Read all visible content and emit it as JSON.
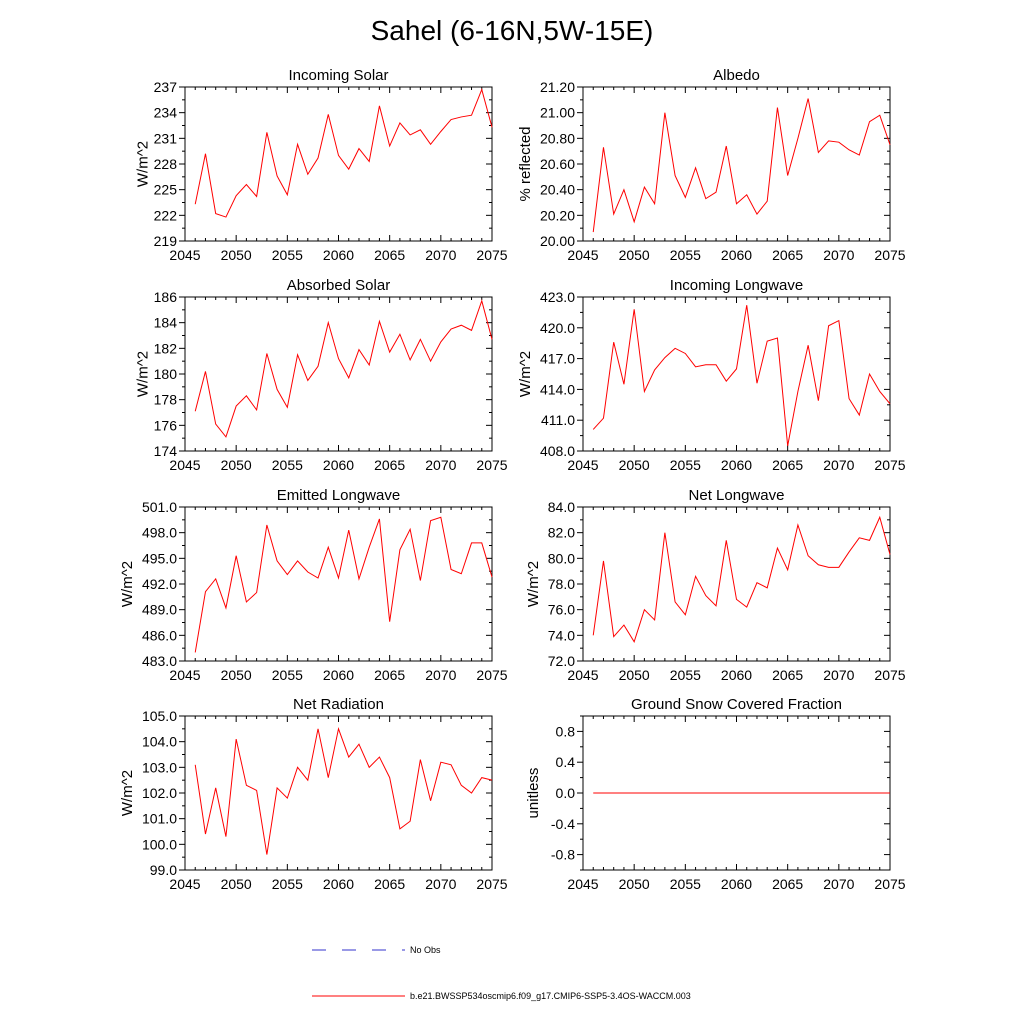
{
  "title": "Sahel (6-16N,5W-15E)",
  "chart_data": [
    {
      "type": "line",
      "title": "Incoming Solar",
      "xlabel": "",
      "ylabel": "W/m^2",
      "xlim": [
        2045,
        2075
      ],
      "ylim": [
        219,
        237
      ],
      "xticks": [
        2045,
        2050,
        2055,
        2060,
        2065,
        2070,
        2075
      ],
      "xtick_labels": [
        "2045",
        "2050",
        "2055",
        "2060",
        "2065",
        "2070",
        "2075"
      ],
      "yticks": [
        219,
        222,
        225,
        228,
        231,
        234,
        237
      ],
      "ytick_labels": [
        "219",
        "222",
        "225",
        "228",
        "231",
        "234",
        "237"
      ],
      "x": [
        2046,
        2047,
        2048,
        2049,
        2050,
        2051,
        2052,
        2053,
        2054,
        2055,
        2056,
        2057,
        2058,
        2059,
        2060,
        2061,
        2062,
        2063,
        2064,
        2065,
        2066,
        2067,
        2068,
        2069,
        2070,
        2071,
        2072,
        2073,
        2074,
        2075
      ],
      "series": [
        {
          "name": "b.e21.BWSSP534oscmip6.f09_g17.CMIP6-SSP5-3.4OS-WACCM.003",
          "color": "#ff0000",
          "values": [
            223.3,
            229.2,
            222.2,
            221.8,
            224.3,
            225.6,
            224.2,
            231.7,
            226.6,
            224.4,
            230.3,
            226.8,
            228.7,
            233.8,
            229.0,
            227.4,
            229.8,
            228.3,
            234.8,
            230.1,
            232.8,
            231.4,
            232.0,
            230.3,
            231.8,
            233.2,
            233.5,
            233.7,
            236.7,
            232.3
          ]
        }
      ]
    },
    {
      "type": "line",
      "title": "Albedo",
      "xlabel": "",
      "ylabel": "% reflected",
      "xlim": [
        2045,
        2075
      ],
      "ylim": [
        20.0,
        21.2
      ],
      "xticks": [
        2045,
        2050,
        2055,
        2060,
        2065,
        2070,
        2075
      ],
      "xtick_labels": [
        "2045",
        "2050",
        "2055",
        "2060",
        "2065",
        "2070",
        "2075"
      ],
      "yticks": [
        20.0,
        20.2,
        20.4,
        20.6,
        20.8,
        21.0,
        21.2
      ],
      "ytick_labels": [
        "20.00",
        "20.20",
        "20.40",
        "20.60",
        "20.80",
        "21.00",
        "21.20"
      ],
      "x": [
        2046,
        2047,
        2048,
        2049,
        2050,
        2051,
        2052,
        2053,
        2054,
        2055,
        2056,
        2057,
        2058,
        2059,
        2060,
        2061,
        2062,
        2063,
        2064,
        2065,
        2066,
        2067,
        2068,
        2069,
        2070,
        2071,
        2072,
        2073,
        2074,
        2075
      ],
      "series": [
        {
          "name": "b.e21.BWSSP534oscmip6.f09_g17.CMIP6-SSP5-3.4OS-WACCM.003",
          "color": "#ff0000",
          "values": [
            20.07,
            20.73,
            20.21,
            20.4,
            20.15,
            20.42,
            20.29,
            21.0,
            20.51,
            20.34,
            20.57,
            20.33,
            20.38,
            20.74,
            20.29,
            20.36,
            20.21,
            20.31,
            21.04,
            20.51,
            20.8,
            21.11,
            20.69,
            20.78,
            20.77,
            20.71,
            20.67,
            20.93,
            20.98,
            20.75
          ]
        }
      ]
    },
    {
      "type": "line",
      "title": "Absorbed Solar",
      "xlabel": "",
      "ylabel": "W/m^2",
      "xlim": [
        2045,
        2075
      ],
      "ylim": [
        174,
        186
      ],
      "xticks": [
        2045,
        2050,
        2055,
        2060,
        2065,
        2070,
        2075
      ],
      "xtick_labels": [
        "2045",
        "2050",
        "2055",
        "2060",
        "2065",
        "2070",
        "2075"
      ],
      "yticks": [
        174,
        176,
        178,
        180,
        182,
        184,
        186
      ],
      "ytick_labels": [
        "174",
        "176",
        "178",
        "180",
        "182",
        "184",
        "186"
      ],
      "x": [
        2046,
        2047,
        2048,
        2049,
        2050,
        2051,
        2052,
        2053,
        2054,
        2055,
        2056,
        2057,
        2058,
        2059,
        2060,
        2061,
        2062,
        2063,
        2064,
        2065,
        2066,
        2067,
        2068,
        2069,
        2070,
        2071,
        2072,
        2073,
        2074,
        2075
      ],
      "series": [
        {
          "name": "b.e21.BWSSP534oscmip6.f09_g17.CMIP6-SSP5-3.4OS-WACCM.003",
          "color": "#ff0000",
          "values": [
            177.1,
            180.2,
            176.1,
            175.1,
            177.5,
            178.3,
            177.2,
            181.6,
            178.8,
            177.4,
            181.5,
            179.5,
            180.6,
            184.0,
            181.2,
            179.7,
            181.9,
            180.7,
            184.1,
            181.7,
            183.1,
            181.1,
            182.7,
            181.0,
            182.5,
            183.5,
            183.8,
            183.4,
            185.7,
            182.7
          ]
        }
      ]
    },
    {
      "type": "line",
      "title": "Incoming Longwave",
      "xlabel": "",
      "ylabel": "W/m^2",
      "xlim": [
        2045,
        2075
      ],
      "ylim": [
        408,
        423
      ],
      "xticks": [
        2045,
        2050,
        2055,
        2060,
        2065,
        2070,
        2075
      ],
      "xtick_labels": [
        "2045",
        "2050",
        "2055",
        "2060",
        "2065",
        "2070",
        "2075"
      ],
      "yticks": [
        408,
        411,
        414,
        417,
        420,
        423
      ],
      "ytick_labels": [
        "408.0",
        "411.0",
        "414.0",
        "417.0",
        "420.0",
        "423.0"
      ],
      "x": [
        2046,
        2047,
        2048,
        2049,
        2050,
        2051,
        2052,
        2053,
        2054,
        2055,
        2056,
        2057,
        2058,
        2059,
        2060,
        2061,
        2062,
        2063,
        2064,
        2065,
        2066,
        2067,
        2068,
        2069,
        2070,
        2071,
        2072,
        2073,
        2074,
        2075
      ],
      "series": [
        {
          "name": "b.e21.BWSSP534oscmip6.f09_g17.CMIP6-SSP5-3.4OS-WACCM.003",
          "color": "#ff0000",
          "values": [
            410.1,
            411.2,
            418.6,
            414.5,
            421.8,
            413.8,
            415.9,
            417.1,
            418.0,
            417.5,
            416.2,
            416.4,
            416.4,
            414.8,
            416.0,
            422.2,
            414.6,
            418.7,
            419.0,
            408.5,
            413.8,
            418.3,
            412.9,
            420.2,
            420.7,
            413.1,
            411.5,
            415.5,
            413.8,
            412.6
          ]
        }
      ]
    },
    {
      "type": "line",
      "title": "Emitted Longwave",
      "xlabel": "",
      "ylabel": "W/m^2",
      "xlim": [
        2045,
        2075
      ],
      "ylim": [
        483,
        501
      ],
      "xticks": [
        2045,
        2050,
        2055,
        2060,
        2065,
        2070,
        2075
      ],
      "xtick_labels": [
        "2045",
        "2050",
        "2055",
        "2060",
        "2065",
        "2070",
        "2075"
      ],
      "yticks": [
        483,
        486,
        489,
        492,
        495,
        498,
        501
      ],
      "ytick_labels": [
        "483.0",
        "486.0",
        "489.0",
        "492.0",
        "495.0",
        "498.0",
        "501.0"
      ],
      "x": [
        2046,
        2047,
        2048,
        2049,
        2050,
        2051,
        2052,
        2053,
        2054,
        2055,
        2056,
        2057,
        2058,
        2059,
        2060,
        2061,
        2062,
        2063,
        2064,
        2065,
        2066,
        2067,
        2068,
        2069,
        2070,
        2071,
        2072,
        2073,
        2074,
        2075
      ],
      "series": [
        {
          "name": "b.e21.BWSSP534oscmip6.f09_g17.CMIP6-SSP5-3.4OS-WACCM.003",
          "color": "#ff0000",
          "values": [
            484.0,
            491.1,
            492.6,
            489.2,
            495.3,
            489.9,
            491.0,
            498.9,
            494.7,
            493.1,
            494.7,
            493.4,
            492.7,
            496.3,
            492.7,
            498.3,
            492.6,
            496.3,
            499.6,
            487.6,
            496.0,
            498.4,
            492.4,
            499.4,
            499.8,
            493.7,
            493.2,
            496.8,
            496.8,
            492.8
          ]
        }
      ]
    },
    {
      "type": "line",
      "title": "Net Longwave",
      "xlabel": "",
      "ylabel": "W/m^2",
      "xlim": [
        2045,
        2075
      ],
      "ylim": [
        72,
        84
      ],
      "xticks": [
        2045,
        2050,
        2055,
        2060,
        2065,
        2070,
        2075
      ],
      "xtick_labels": [
        "2045",
        "2050",
        "2055",
        "2060",
        "2065",
        "2070",
        "2075"
      ],
      "yticks": [
        72,
        74,
        76,
        78,
        80,
        82,
        84
      ],
      "ytick_labels": [
        "72.0",
        "74.0",
        "76.0",
        "78.0",
        "80.0",
        "82.0",
        "84.0"
      ],
      "x": [
        2046,
        2047,
        2048,
        2049,
        2050,
        2051,
        2052,
        2053,
        2054,
        2055,
        2056,
        2057,
        2058,
        2059,
        2060,
        2061,
        2062,
        2063,
        2064,
        2065,
        2066,
        2067,
        2068,
        2069,
        2070,
        2071,
        2072,
        2073,
        2074,
        2075
      ],
      "series": [
        {
          "name": "b.e21.BWSSP534oscmip6.f09_g17.CMIP6-SSP5-3.4OS-WACCM.003",
          "color": "#ff0000",
          "values": [
            74.0,
            79.8,
            73.9,
            74.8,
            73.5,
            76.0,
            75.2,
            82.0,
            76.6,
            75.6,
            78.6,
            77.1,
            76.3,
            81.4,
            76.8,
            76.2,
            78.1,
            77.7,
            80.8,
            79.1,
            82.6,
            80.2,
            79.5,
            79.3,
            79.3,
            80.5,
            81.6,
            81.4,
            83.2,
            80.3
          ]
        }
      ]
    },
    {
      "type": "line",
      "title": "Net Radiation",
      "xlabel": "",
      "ylabel": "W/m^2",
      "xlim": [
        2045,
        2075
      ],
      "ylim": [
        99,
        105
      ],
      "xticks": [
        2045,
        2050,
        2055,
        2060,
        2065,
        2070,
        2075
      ],
      "xtick_labels": [
        "2045",
        "2050",
        "2055",
        "2060",
        "2065",
        "2070",
        "2075"
      ],
      "yticks": [
        99,
        100,
        101,
        102,
        103,
        104,
        105
      ],
      "ytick_labels": [
        "99.0",
        "100.0",
        "101.0",
        "102.0",
        "103.0",
        "104.0",
        "105.0"
      ],
      "x": [
        2046,
        2047,
        2048,
        2049,
        2050,
        2051,
        2052,
        2053,
        2054,
        2055,
        2056,
        2057,
        2058,
        2059,
        2060,
        2061,
        2062,
        2063,
        2064,
        2065,
        2066,
        2067,
        2068,
        2069,
        2070,
        2071,
        2072,
        2073,
        2074,
        2075
      ],
      "series": [
        {
          "name": "b.e21.BWSSP534oscmip6.f09_g17.CMIP6-SSP5-3.4OS-WACCM.003",
          "color": "#ff0000",
          "values": [
            103.1,
            100.4,
            102.2,
            100.3,
            104.1,
            102.3,
            102.1,
            99.6,
            102.2,
            101.8,
            103.0,
            102.5,
            104.5,
            102.6,
            104.5,
            103.4,
            103.9,
            103.0,
            103.4,
            102.6,
            100.6,
            100.9,
            103.3,
            101.7,
            103.2,
            103.1,
            102.3,
            102.0,
            102.6,
            102.5
          ]
        }
      ]
    },
    {
      "type": "line",
      "title": "Ground Snow Covered Fraction",
      "xlabel": "",
      "ylabel": "unitless",
      "xlim": [
        2045,
        2075
      ],
      "ylim": [
        -1.0,
        1.0
      ],
      "xticks": [
        2045,
        2050,
        2055,
        2060,
        2065,
        2070,
        2075
      ],
      "xtick_labels": [
        "2045",
        "2050",
        "2055",
        "2060",
        "2065",
        "2070",
        "2075"
      ],
      "yticks": [
        -0.8,
        -0.4,
        0.0,
        0.4,
        0.8
      ],
      "ytick_labels": [
        "-0.8",
        "-0.4",
        "0.0",
        "0.4",
        "0.8"
      ],
      "x": [
        2046,
        2047,
        2048,
        2049,
        2050,
        2051,
        2052,
        2053,
        2054,
        2055,
        2056,
        2057,
        2058,
        2059,
        2060,
        2061,
        2062,
        2063,
        2064,
        2065,
        2066,
        2067,
        2068,
        2069,
        2070,
        2071,
        2072,
        2073,
        2074,
        2075
      ],
      "series": [
        {
          "name": "b.e21.BWSSP534oscmip6.f09_g17.CMIP6-SSP5-3.4OS-WACCM.003",
          "color": "#ff0000",
          "values": [
            0,
            0,
            0,
            0,
            0,
            0,
            0,
            0,
            0,
            0,
            0,
            0,
            0,
            0,
            0,
            0,
            0,
            0,
            0,
            0,
            0,
            0,
            0,
            0,
            0,
            0,
            0,
            0,
            0,
            0
          ]
        }
      ]
    }
  ],
  "legend": [
    {
      "label": "No Obs",
      "color": "#3333cc",
      "style": "dashed"
    },
    {
      "label": "b.e21.BWSSP534oscmip6.f09_g17.CMIP6-SSP5-3.4OS-WACCM.003",
      "color": "#ff0000",
      "style": "solid"
    }
  ]
}
